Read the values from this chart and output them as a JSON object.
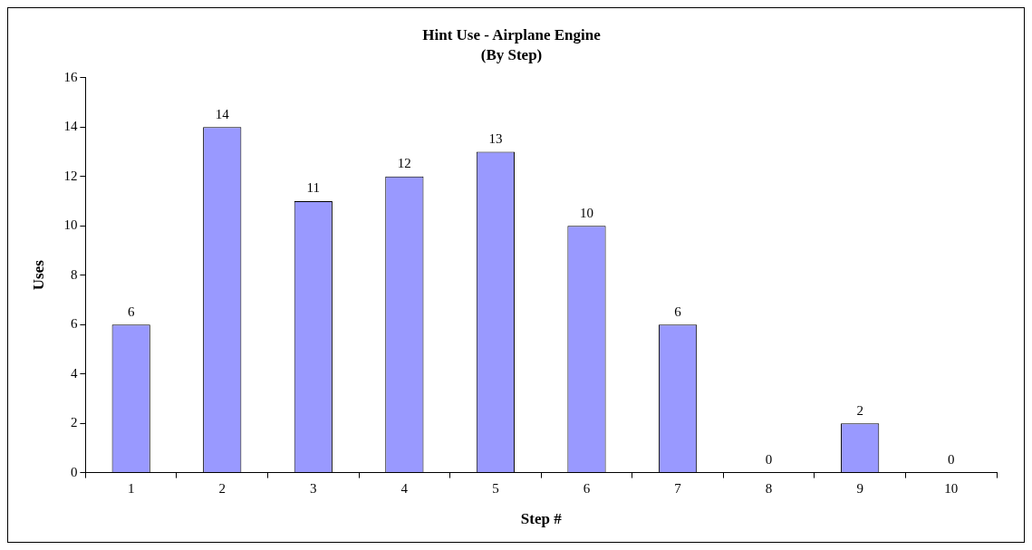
{
  "chart_data": {
    "type": "bar",
    "title": "Hint Use - Airplane Engine",
    "subtitle": "(By Step)",
    "xlabel": "Step #",
    "ylabel": "Uses",
    "categories": [
      "1",
      "2",
      "3",
      "4",
      "5",
      "6",
      "7",
      "8",
      "9",
      "10"
    ],
    "values": [
      6,
      14,
      11,
      12,
      13,
      10,
      6,
      0,
      2,
      0
    ],
    "color": "#9999ff",
    "ylim": [
      0,
      16
    ],
    "yticks": [
      0,
      2,
      4,
      6,
      8,
      10,
      12,
      14,
      16
    ],
    "grid": false,
    "legend": false,
    "data_labels": true
  }
}
